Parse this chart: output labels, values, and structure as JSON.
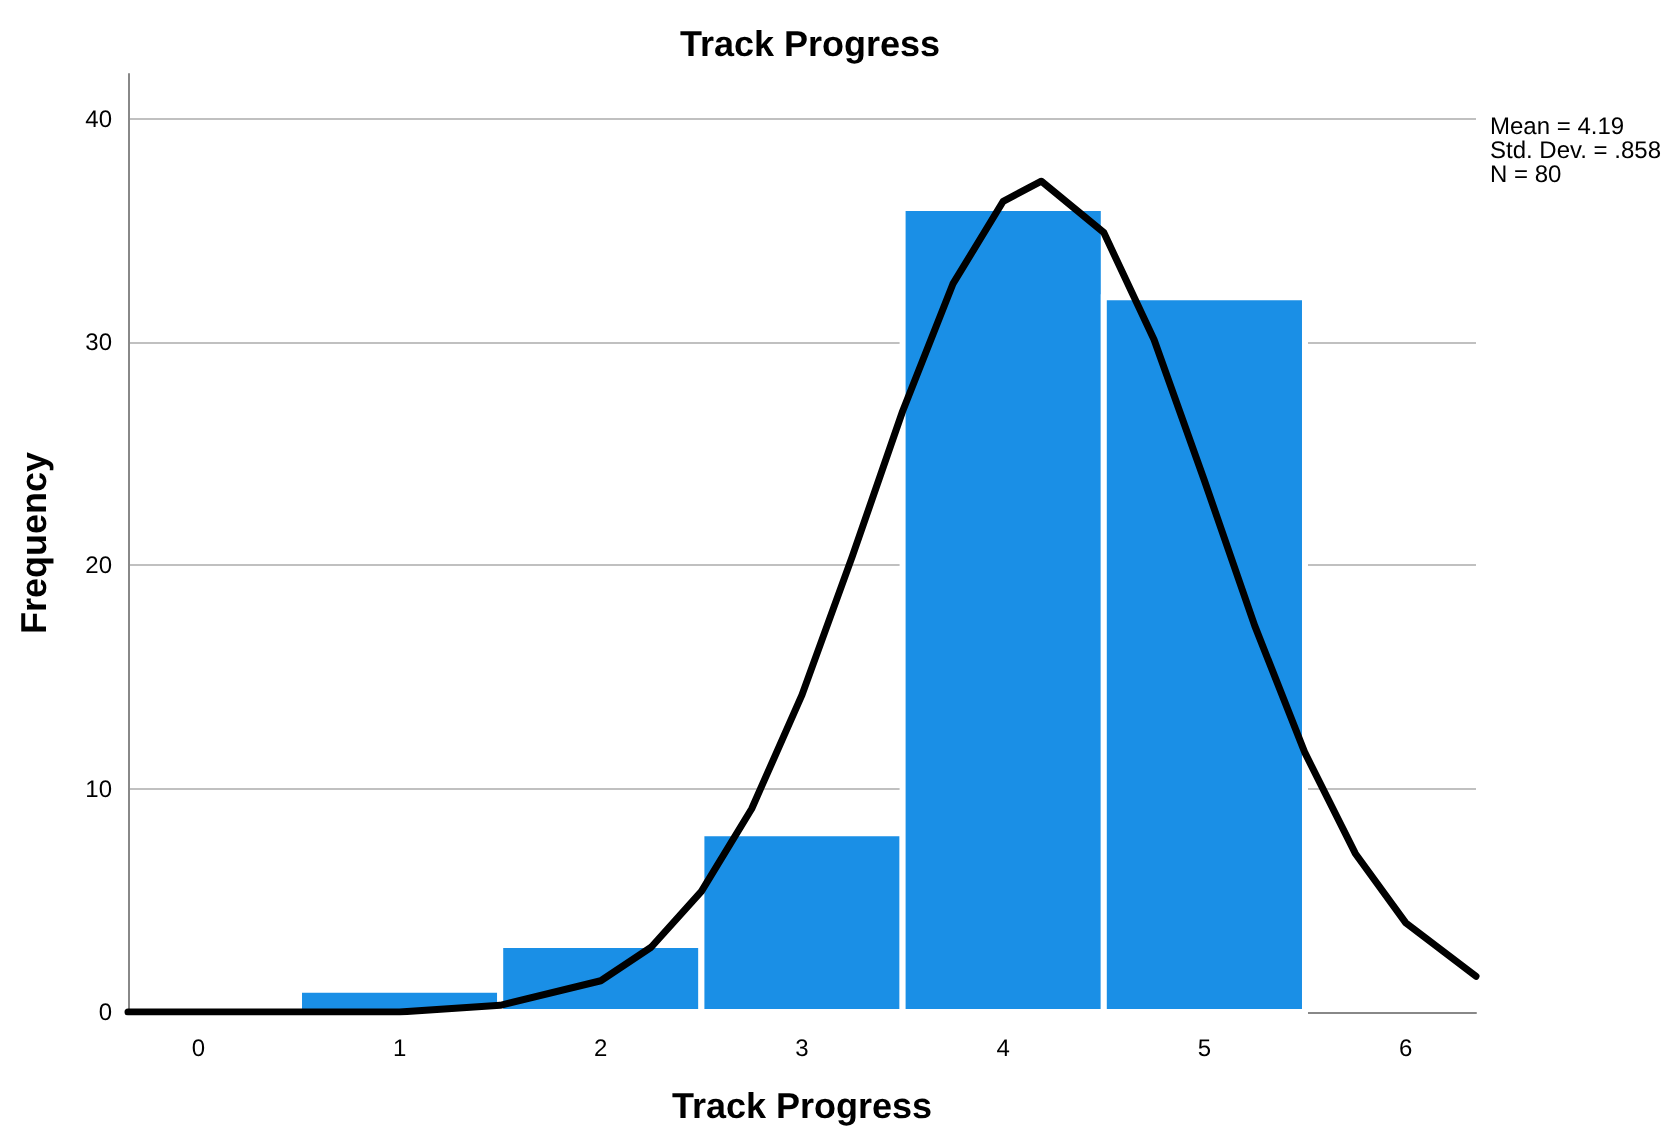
{
  "chart_data": {
    "type": "histogram",
    "title": "Track Progress",
    "xlabel": "Track Progress",
    "ylabel": "Frequency",
    "annotations": [
      "Mean = 4.19",
      "Std. Dev. = .858",
      "N = 80"
    ],
    "xlim": [
      -0.35,
      6.35
    ],
    "xticks": [
      0,
      1,
      2,
      3,
      4,
      5,
      6
    ],
    "ylim": [
      0,
      42
    ],
    "yticks": [
      0,
      10,
      20,
      30,
      40
    ],
    "grid": "y",
    "marker": "none",
    "line_style": "solid",
    "series": [
      {
        "color": "#1a8fe6",
        "bins": [
          0.5,
          1.5,
          2.5,
          3.5,
          4.5,
          5.5
        ],
        "values": [
          1,
          3,
          8,
          36,
          32
        ]
      },
      {
        "type": "line",
        "color": "#000000",
        "x": [
          -0.35,
          0,
          0.5,
          1,
          1.5,
          2,
          2.25,
          2.5,
          2.75,
          3,
          3.25,
          3.5,
          3.75,
          4,
          4.19,
          4.5,
          4.75,
          5,
          5.25,
          5.5,
          5.75,
          6,
          6.35
        ],
        "values": [
          0,
          0,
          0,
          0,
          0.3,
          1.4,
          2.9,
          5.4,
          9.1,
          14.2,
          20.4,
          26.9,
          32.6,
          36.3,
          37.2,
          34.9,
          30.1,
          23.8,
          17.3,
          11.6,
          7.1,
          4.0,
          1.6
        ]
      }
    ]
  }
}
